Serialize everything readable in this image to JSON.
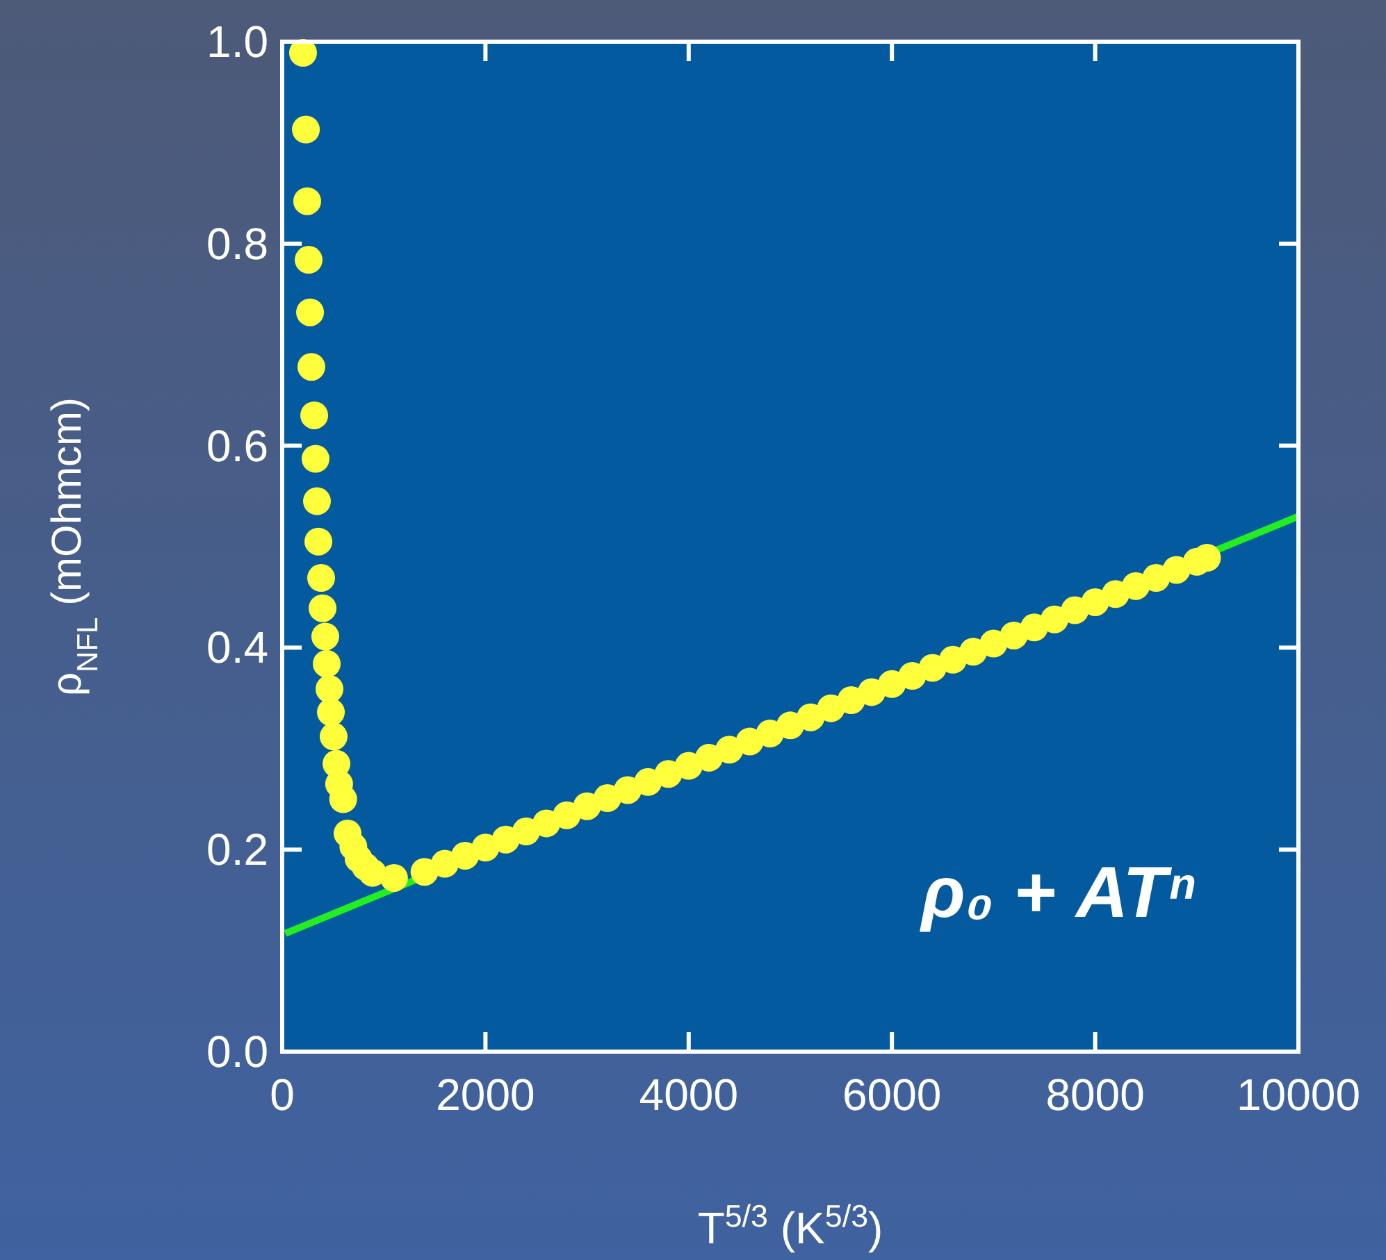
{
  "chart_data": {
    "type": "scatter",
    "xlabel": "T$^{5/3}$ (K$^{5/3}$)",
    "ylabel": "ρ$_{NFL}$ (mOhmcm)",
    "annotations": [
      "ρ₀ + ATⁿ"
    ],
    "xlim": [
      0,
      10000
    ],
    "ylim": [
      0,
      1.0
    ],
    "xticks": [
      0,
      2000,
      4000,
      6000,
      8000,
      10000
    ],
    "yticks": [
      {
        "value": 0,
        "label": "0.0"
      },
      {
        "value": 0.2,
        "label": "0.2"
      },
      {
        "value": 0.4,
        "label": "0.4"
      },
      {
        "value": 0.6,
        "label": "0.6"
      },
      {
        "value": 0.8,
        "label": "0.8"
      },
      {
        "value": 1.0,
        "label": "1.0"
      }
    ],
    "series": [
      {
        "color": "#ffff3c",
        "marker": "circle",
        "x": [
          205,
          233,
          246,
          260,
          274,
          287,
          315,
          328,
          342,
          356,
          383,
          397,
          424,
          438,
          465,
          479,
          506,
          534,
          560,
          600,
          643,
          700,
          752,
          820,
          889,
          1100,
          1400,
          1600,
          1800,
          2000,
          2200,
          2400,
          2600,
          2800,
          3000,
          3200,
          3400,
          3600,
          3800,
          4000,
          4200,
          4400,
          4600,
          4800,
          5000,
          5200,
          5400,
          5600,
          5800,
          6000,
          6200,
          6400,
          6600,
          6800,
          7000,
          7200,
          7400,
          7600,
          7800,
          8000,
          8200,
          8400,
          8600,
          8800,
          9000,
          9100
        ],
        "values": [
          0.989,
          0.913,
          0.842,
          0.784,
          0.732,
          0.678,
          0.63,
          0.587,
          0.545,
          0.505,
          0.469,
          0.439,
          0.411,
          0.384,
          0.359,
          0.336,
          0.312,
          0.285,
          0.265,
          0.25,
          0.216,
          0.203,
          0.191,
          0.183,
          0.177,
          0.172,
          0.178,
          0.186,
          0.194,
          0.202,
          0.21,
          0.218,
          0.226,
          0.234,
          0.243,
          0.251,
          0.259,
          0.267,
          0.275,
          0.283,
          0.291,
          0.299,
          0.307,
          0.315,
          0.323,
          0.331,
          0.34,
          0.348,
          0.356,
          0.364,
          0.372,
          0.38,
          0.388,
          0.396,
          0.404,
          0.412,
          0.42,
          0.428,
          0.437,
          0.445,
          0.453,
          0.461,
          0.469,
          0.477,
          0.485,
          0.489
        ]
      },
      {
        "type": "line",
        "color": "#22ee22",
        "line_style": "solid",
        "x": [
          30,
          10000
        ],
        "values": [
          0.117,
          0.53
        ]
      }
    ]
  }
}
